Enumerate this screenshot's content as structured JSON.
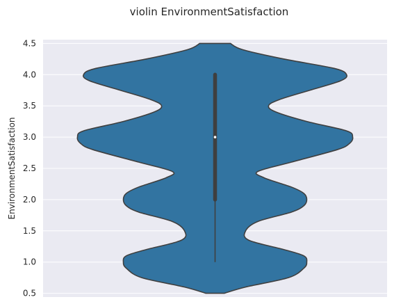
{
  "chart_data": {
    "type": "violin",
    "title": "violin EnvironmentSatisfaction",
    "xlabel": "",
    "ylabel": "EnvironmentSatisfaction",
    "ylim": [
      0.44,
      4.56
    ],
    "yticks": [
      "0.5",
      "1.0",
      "1.5",
      "2.0",
      "2.5",
      "3.0",
      "3.5",
      "4.0",
      "4.5"
    ],
    "grid": true,
    "colors": {
      "background": "#EAEAF2",
      "violin_fill": "#3274A1",
      "violin_edge": "#3F3F3F",
      "box": "#3F3F3F",
      "median": "#FFFFFF"
    },
    "series": [
      {
        "density_profile": [
          [
            0.5,
            0.06
          ],
          [
            0.6,
            0.2
          ],
          [
            0.75,
            0.48
          ],
          [
            0.9,
            0.58
          ],
          [
            1.0,
            0.6
          ],
          [
            1.1,
            0.58
          ],
          [
            1.2,
            0.45
          ],
          [
            1.35,
            0.22
          ],
          [
            1.5,
            0.2
          ],
          [
            1.65,
            0.28
          ],
          [
            1.8,
            0.5
          ],
          [
            1.9,
            0.58
          ],
          [
            2.0,
            0.6
          ],
          [
            2.1,
            0.58
          ],
          [
            2.2,
            0.5
          ],
          [
            2.35,
            0.32
          ],
          [
            2.45,
            0.28
          ],
          [
            2.6,
            0.5
          ],
          [
            2.8,
            0.8
          ],
          [
            2.9,
            0.88
          ],
          [
            3.0,
            0.9
          ],
          [
            3.1,
            0.86
          ],
          [
            3.25,
            0.6
          ],
          [
            3.4,
            0.4
          ],
          [
            3.5,
            0.35
          ],
          [
            3.6,
            0.42
          ],
          [
            3.75,
            0.62
          ],
          [
            3.9,
            0.82
          ],
          [
            4.0,
            0.86
          ],
          [
            4.1,
            0.78
          ],
          [
            4.25,
            0.45
          ],
          [
            4.4,
            0.18
          ],
          [
            4.5,
            0.1
          ]
        ],
        "box": {
          "min": 1.0,
          "q1": 2.0,
          "median": 3.0,
          "q3": 4.0,
          "max": 4.0
        }
      }
    ]
  }
}
